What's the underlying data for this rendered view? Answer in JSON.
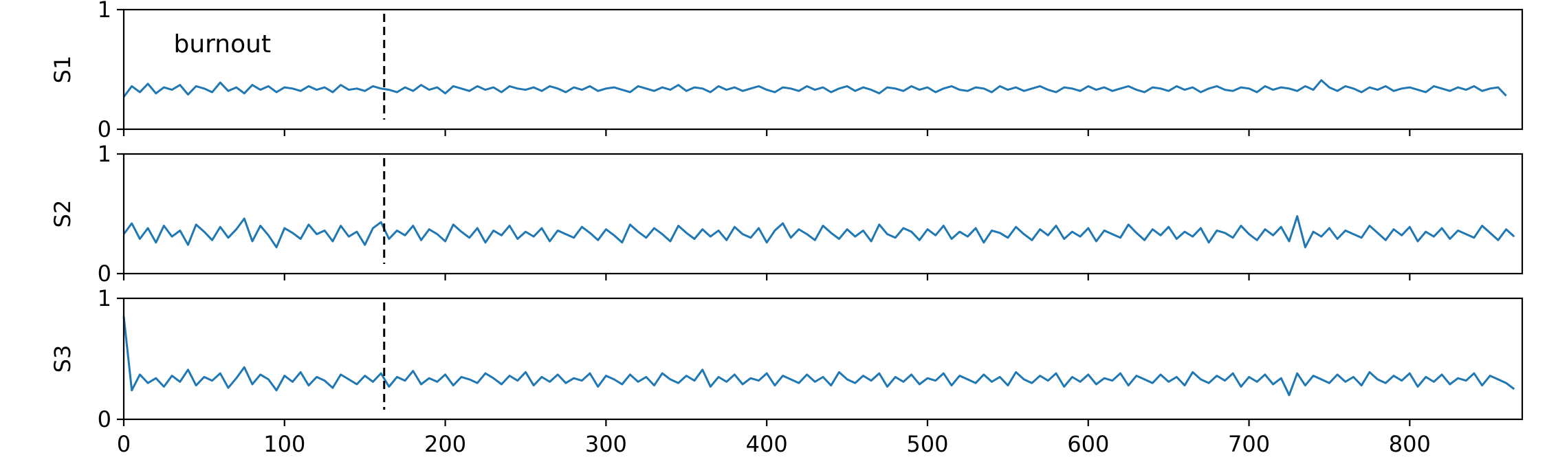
{
  "chart_data": {
    "type": "line",
    "xlim": [
      0,
      870
    ],
    "ylim": [
      0,
      1
    ],
    "x_ticks": [
      0,
      100,
      200,
      300,
      400,
      500,
      600,
      700,
      800
    ],
    "y_ticks": [
      0,
      1
    ],
    "burnout_x": 162,
    "annotation": "burnout",
    "color": "#1f77b4",
    "grid": false,
    "panels": [
      {
        "ylabel": "S1",
        "x_start": 0,
        "x_step": 5,
        "values": [
          0.27,
          0.36,
          0.31,
          0.38,
          0.3,
          0.35,
          0.33,
          0.37,
          0.29,
          0.36,
          0.34,
          0.31,
          0.39,
          0.32,
          0.35,
          0.3,
          0.37,
          0.33,
          0.36,
          0.31,
          0.35,
          0.34,
          0.32,
          0.36,
          0.33,
          0.35,
          0.31,
          0.37,
          0.33,
          0.34,
          0.32,
          0.36,
          0.34,
          0.33,
          0.31,
          0.35,
          0.32,
          0.37,
          0.33,
          0.35,
          0.3,
          0.36,
          0.34,
          0.32,
          0.36,
          0.33,
          0.35,
          0.31,
          0.36,
          0.34,
          0.33,
          0.35,
          0.32,
          0.36,
          0.34,
          0.31,
          0.35,
          0.33,
          0.36,
          0.32,
          0.34,
          0.35,
          0.33,
          0.31,
          0.36,
          0.34,
          0.32,
          0.35,
          0.33,
          0.37,
          0.32,
          0.35,
          0.34,
          0.31,
          0.36,
          0.33,
          0.35,
          0.32,
          0.34,
          0.36,
          0.33,
          0.31,
          0.35,
          0.34,
          0.32,
          0.36,
          0.33,
          0.35,
          0.31,
          0.34,
          0.36,
          0.32,
          0.35,
          0.33,
          0.3,
          0.35,
          0.34,
          0.32,
          0.36,
          0.33,
          0.35,
          0.31,
          0.34,
          0.36,
          0.33,
          0.32,
          0.35,
          0.34,
          0.31,
          0.36,
          0.33,
          0.35,
          0.32,
          0.34,
          0.36,
          0.33,
          0.31,
          0.35,
          0.34,
          0.32,
          0.36,
          0.33,
          0.35,
          0.32,
          0.34,
          0.36,
          0.33,
          0.31,
          0.35,
          0.34,
          0.32,
          0.36,
          0.33,
          0.35,
          0.31,
          0.34,
          0.36,
          0.33,
          0.32,
          0.35,
          0.34,
          0.31,
          0.36,
          0.33,
          0.35,
          0.34,
          0.32,
          0.36,
          0.33,
          0.41,
          0.35,
          0.32,
          0.36,
          0.34,
          0.31,
          0.35,
          0.33,
          0.36,
          0.32,
          0.34,
          0.35,
          0.33,
          0.31,
          0.36,
          0.34,
          0.32,
          0.35,
          0.33,
          0.36,
          0.32,
          0.34,
          0.35,
          0.28
        ]
      },
      {
        "ylabel": "S2",
        "x_start": 0,
        "x_step": 5,
        "values": [
          0.33,
          0.42,
          0.29,
          0.38,
          0.26,
          0.4,
          0.31,
          0.36,
          0.24,
          0.41,
          0.35,
          0.28,
          0.39,
          0.3,
          0.37,
          0.46,
          0.27,
          0.4,
          0.32,
          0.22,
          0.38,
          0.34,
          0.29,
          0.41,
          0.33,
          0.36,
          0.27,
          0.4,
          0.31,
          0.35,
          0.24,
          0.38,
          0.43,
          0.29,
          0.36,
          0.32,
          0.4,
          0.28,
          0.37,
          0.33,
          0.27,
          0.41,
          0.35,
          0.3,
          0.38,
          0.26,
          0.36,
          0.32,
          0.4,
          0.29,
          0.35,
          0.31,
          0.38,
          0.27,
          0.36,
          0.33,
          0.3,
          0.39,
          0.34,
          0.28,
          0.37,
          0.32,
          0.26,
          0.41,
          0.35,
          0.3,
          0.38,
          0.33,
          0.27,
          0.4,
          0.34,
          0.29,
          0.37,
          0.31,
          0.36,
          0.28,
          0.39,
          0.33,
          0.3,
          0.38,
          0.26,
          0.36,
          0.42,
          0.3,
          0.37,
          0.33,
          0.28,
          0.4,
          0.34,
          0.29,
          0.37,
          0.31,
          0.36,
          0.27,
          0.41,
          0.33,
          0.3,
          0.38,
          0.35,
          0.28,
          0.37,
          0.32,
          0.4,
          0.29,
          0.35,
          0.31,
          0.38,
          0.26,
          0.36,
          0.34,
          0.3,
          0.39,
          0.33,
          0.28,
          0.37,
          0.32,
          0.4,
          0.29,
          0.35,
          0.31,
          0.38,
          0.27,
          0.36,
          0.33,
          0.3,
          0.41,
          0.34,
          0.28,
          0.37,
          0.32,
          0.39,
          0.29,
          0.35,
          0.31,
          0.38,
          0.26,
          0.36,
          0.34,
          0.3,
          0.4,
          0.33,
          0.28,
          0.37,
          0.32,
          0.39,
          0.27,
          0.48,
          0.22,
          0.35,
          0.31,
          0.38,
          0.29,
          0.36,
          0.33,
          0.3,
          0.4,
          0.34,
          0.28,
          0.37,
          0.32,
          0.39,
          0.27,
          0.35,
          0.31,
          0.38,
          0.29,
          0.36,
          0.33,
          0.3,
          0.4,
          0.34,
          0.28,
          0.37,
          0.31
        ]
      },
      {
        "ylabel": "S3",
        "x_start": 0,
        "x_step": 5,
        "values": [
          0.85,
          0.24,
          0.37,
          0.3,
          0.34,
          0.27,
          0.36,
          0.31,
          0.41,
          0.28,
          0.35,
          0.32,
          0.38,
          0.26,
          0.34,
          0.43,
          0.29,
          0.37,
          0.33,
          0.24,
          0.36,
          0.31,
          0.39,
          0.28,
          0.35,
          0.32,
          0.26,
          0.37,
          0.33,
          0.29,
          0.36,
          0.31,
          0.38,
          0.27,
          0.35,
          0.32,
          0.4,
          0.29,
          0.34,
          0.31,
          0.37,
          0.28,
          0.35,
          0.33,
          0.3,
          0.38,
          0.34,
          0.29,
          0.36,
          0.32,
          0.39,
          0.28,
          0.35,
          0.31,
          0.37,
          0.3,
          0.34,
          0.32,
          0.38,
          0.27,
          0.36,
          0.33,
          0.29,
          0.37,
          0.31,
          0.35,
          0.28,
          0.38,
          0.33,
          0.3,
          0.36,
          0.32,
          0.41,
          0.27,
          0.35,
          0.31,
          0.37,
          0.29,
          0.34,
          0.32,
          0.38,
          0.28,
          0.36,
          0.33,
          0.3,
          0.37,
          0.31,
          0.35,
          0.28,
          0.39,
          0.33,
          0.3,
          0.36,
          0.32,
          0.38,
          0.27,
          0.35,
          0.31,
          0.37,
          0.29,
          0.34,
          0.32,
          0.38,
          0.28,
          0.36,
          0.33,
          0.3,
          0.37,
          0.31,
          0.35,
          0.28,
          0.39,
          0.33,
          0.3,
          0.36,
          0.32,
          0.38,
          0.27,
          0.35,
          0.31,
          0.37,
          0.29,
          0.34,
          0.32,
          0.38,
          0.28,
          0.36,
          0.33,
          0.3,
          0.37,
          0.31,
          0.35,
          0.28,
          0.39,
          0.33,
          0.3,
          0.36,
          0.32,
          0.38,
          0.27,
          0.35,
          0.31,
          0.37,
          0.29,
          0.34,
          0.2,
          0.38,
          0.28,
          0.36,
          0.33,
          0.3,
          0.37,
          0.31,
          0.35,
          0.28,
          0.39,
          0.33,
          0.3,
          0.36,
          0.32,
          0.38,
          0.27,
          0.35,
          0.31,
          0.37,
          0.29,
          0.34,
          0.32,
          0.38,
          0.28,
          0.36,
          0.33,
          0.3,
          0.25
        ]
      }
    ]
  }
}
